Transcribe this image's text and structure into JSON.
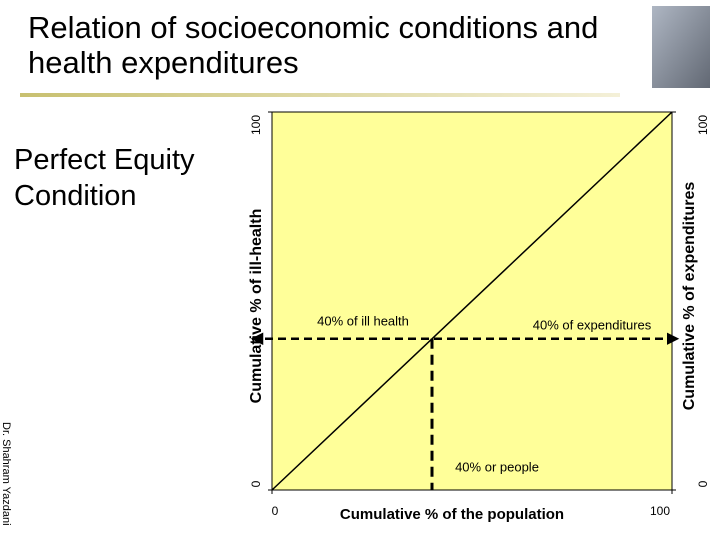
{
  "slide_title": "Relation of socioeconomic conditions and health expenditures",
  "subtitle": "Perfect Equity Condition",
  "author": "Dr. Shahram Yazdani",
  "chart_data": {
    "type": "line",
    "x": [
      0,
      100
    ],
    "series": [
      {
        "color": "#000000",
        "values": [
          0,
          100
        ]
      }
    ],
    "xlim": [
      0,
      100
    ],
    "ylim": [
      0,
      100
    ],
    "y2lim": [
      0,
      100
    ],
    "xticks": [
      0,
      100
    ],
    "yticks": [
      0,
      100
    ],
    "y2ticks": [
      0,
      100
    ],
    "xlabel": "Cumulative % of  the population",
    "ylabel": "Cumulative % of  ill-health",
    "y2label": "Cumulative % of  expenditures",
    "plot_color": "#ffff99",
    "guide": {
      "x": 40,
      "y": 40
    },
    "annotations": [
      "40% of ill health",
      "40% of expenditures",
      "40% or people"
    ]
  }
}
